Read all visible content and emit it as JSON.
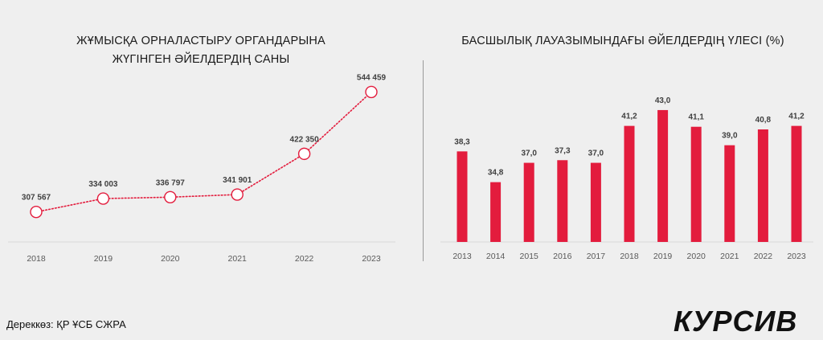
{
  "left_chart_title_line1": "ЖҰМЫСҚА ОРНАЛАСТЫРУ ОРГАНДАРЫНА",
  "left_chart_title_line2": "ЖҮГІНГЕН ӘЙЕЛДЕРДІҢ САНЫ",
  "right_chart_title": "БАСШЫЛЫҚ ЛАУАЗЫМЫНДАҒЫ ӘЙЕЛДЕРДІҢ ҮЛЕСІ (%)",
  "source_text": "Дереккөз: ҚР ҰСБ СЖРА",
  "logo_text": "КУРСИВ",
  "colors": {
    "accent": "#e31c3d",
    "axis": "#d9d9d9",
    "label": "#404040",
    "background": "#efefef"
  },
  "chart_data": [
    {
      "type": "line",
      "title": "ЖҰМЫСҚА ОРНАЛАСТЫРУ ОРГАНДАРЫНА ЖҮГІНГЕН ӘЙЕЛДЕРДІҢ САНЫ",
      "categories": [
        "2018",
        "2019",
        "2020",
        "2021",
        "2022",
        "2023"
      ],
      "values": [
        307567,
        334003,
        336797,
        341901,
        422350,
        544459
      ],
      "data_labels": [
        "307 567",
        "334 003",
        "336 797",
        "341 901",
        "422 350",
        "544 459"
      ],
      "line_style": "dotted",
      "marker": "hollow-circle",
      "ylim": [
        250000,
        580000
      ],
      "grid": false
    },
    {
      "type": "bar",
      "title": "БАСШЫЛЫҚ ЛАУАЗЫМЫНДАҒЫ ӘЙЕЛДЕРДІҢ ҮЛЕСІ (%)",
      "categories": [
        "2013",
        "2014",
        "2015",
        "2016",
        "2017",
        "2018",
        "2019",
        "2020",
        "2021",
        "2022",
        "2023"
      ],
      "values": [
        38.3,
        34.8,
        37.0,
        37.3,
        37.0,
        41.2,
        43.0,
        41.1,
        39.0,
        40.8,
        41.2
      ],
      "data_labels": [
        "38,3",
        "34,8",
        "37,0",
        "37,3",
        "37,0",
        "41,2",
        "43,0",
        "41,1",
        "39,0",
        "40,8",
        "41,2"
      ],
      "ylim": [
        28,
        44
      ],
      "grid": false
    }
  ]
}
